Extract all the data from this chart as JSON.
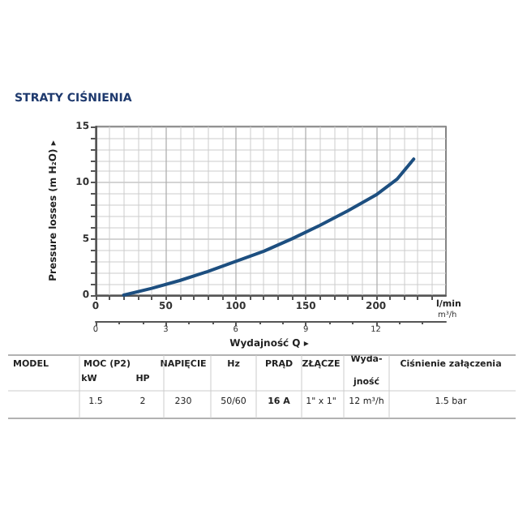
{
  "chart_data": {
    "type": "line",
    "title": "STRATY CIŚNIENIA",
    "xlabel": "Wydajność Q ▸",
    "ylabel": "Pressure losses (m H₂O) ▸",
    "x2label": "m³/h",
    "x": [
      20,
      40,
      60,
      80,
      100,
      120,
      140,
      160,
      180,
      200,
      215,
      227
    ],
    "series": [
      {
        "color": "#1d4f80",
        "values": [
          0,
          0.6,
          1.3,
          2.1,
          3,
          3.9,
          5,
          6.2,
          7.5,
          8.9,
          10.3,
          12.1
        ]
      }
    ],
    "xlim": [
      0,
      250
    ],
    "xticks": [
      0,
      50,
      100,
      150,
      200
    ],
    "ylim": [
      0,
      15
    ],
    "yticks": [
      0,
      5,
      10,
      15
    ],
    "x2lim": [
      0,
      15
    ],
    "x2ticks": [
      0,
      3,
      6,
      9,
      12
    ],
    "grid": true,
    "marker": "none",
    "line_style": "solid",
    "annotations": [
      "l/min",
      "MODEL",
      "MOC (P2)",
      "kW",
      "HP",
      "NAPIĘCIE",
      "Hz",
      "PRĄD",
      "ZŁĄCZE",
      "Wyda- jność",
      "Ciśnienie załączenia",
      "1.5",
      "2",
      "230",
      "50/60",
      "16 A",
      "1\" x 1\"",
      "12 m³/h",
      "1.5 bar"
    ]
  }
}
